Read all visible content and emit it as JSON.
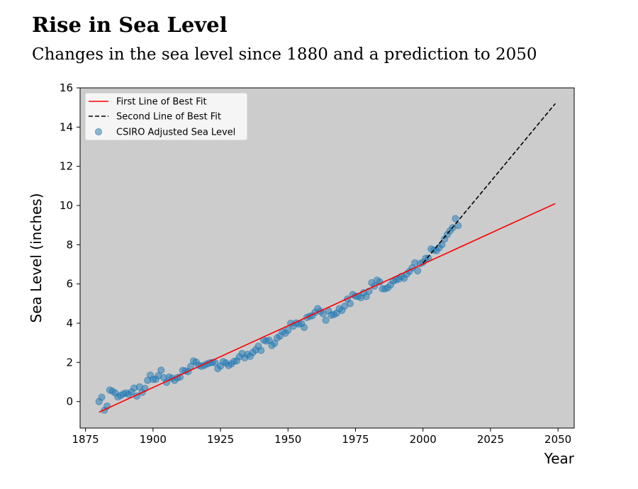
{
  "header": {
    "title": "Rise in Sea Level",
    "subtitle": "Changes in the sea level since 1880 and a prediction to 2050"
  },
  "chart_data": {
    "type": "scatter",
    "xlabel": "Year",
    "ylabel": "Sea Level (inches)",
    "xlim": [
      1873,
      2056
    ],
    "ylim": [
      -1.35,
      16
    ],
    "xticks": [
      1875,
      1900,
      1925,
      1950,
      1975,
      2000,
      2025,
      2050
    ],
    "yticks": [
      0,
      2,
      4,
      6,
      8,
      10,
      12,
      14,
      16
    ],
    "background_color": "#cccccc",
    "grid": false,
    "legend_position": "top-left",
    "legend": [
      {
        "label": "First Line of Best Fit",
        "style": "solid",
        "color": "#ff0000"
      },
      {
        "label": "Second Line of Best Fit",
        "style": "dashed",
        "color": "#000000"
      },
      {
        "label": "CSIRO Adjusted Sea Level",
        "style": "marker",
        "color": "#1f77b4"
      }
    ],
    "series": [
      {
        "name": "CSIRO Adjusted Sea Level",
        "type": "scatter",
        "color": "#1f77b4",
        "x": [
          1880,
          1881,
          1882,
          1883,
          1884,
          1885,
          1886,
          1887,
          1888,
          1889,
          1890,
          1891,
          1892,
          1893,
          1894,
          1895,
          1896,
          1897,
          1898,
          1899,
          1900,
          1901,
          1902,
          1903,
          1904,
          1905,
          1906,
          1907,
          1908,
          1909,
          1910,
          1911,
          1912,
          1913,
          1914,
          1915,
          1916,
          1917,
          1918,
          1919,
          1920,
          1921,
          1922,
          1923,
          1924,
          1925,
          1926,
          1927,
          1928,
          1929,
          1930,
          1931,
          1932,
          1933,
          1934,
          1935,
          1936,
          1937,
          1938,
          1939,
          1940,
          1941,
          1942,
          1943,
          1944,
          1945,
          1946,
          1947,
          1948,
          1949,
          1950,
          1951,
          1952,
          1953,
          1954,
          1955,
          1956,
          1957,
          1958,
          1959,
          1960,
          1961,
          1962,
          1963,
          1964,
          1965,
          1966,
          1967,
          1968,
          1969,
          1970,
          1971,
          1972,
          1973,
          1974,
          1975,
          1976,
          1977,
          1978,
          1979,
          1980,
          1981,
          1982,
          1983,
          1984,
          1985,
          1986,
          1987,
          1988,
          1989,
          1990,
          1991,
          1992,
          1993,
          1994,
          1995,
          1996,
          1997,
          1998,
          1999,
          2000,
          2001,
          2002,
          2003,
          2004,
          2005,
          2006,
          2007,
          2008,
          2009,
          2010,
          2011,
          2012,
          2013
        ],
        "y": [
          0.0,
          0.22,
          -0.44,
          -0.23,
          0.59,
          0.53,
          0.44,
          0.24,
          0.31,
          0.39,
          0.44,
          0.37,
          0.49,
          0.69,
          0.28,
          0.75,
          0.47,
          0.67,
          1.08,
          1.35,
          1.13,
          1.14,
          1.32,
          1.6,
          1.22,
          0.98,
          1.25,
          1.19,
          1.08,
          1.22,
          1.25,
          1.59,
          1.57,
          1.53,
          1.8,
          2.07,
          2.01,
          1.85,
          1.8,
          1.85,
          1.92,
          1.97,
          2.0,
          1.98,
          1.68,
          1.81,
          2.04,
          1.97,
          1.84,
          1.92,
          2.05,
          2.08,
          2.29,
          2.45,
          2.23,
          2.41,
          2.31,
          2.51,
          2.63,
          2.82,
          2.61,
          3.13,
          3.09,
          3.13,
          2.86,
          2.97,
          3.25,
          3.34,
          3.57,
          3.49,
          3.64,
          3.99,
          3.85,
          4.01,
          3.96,
          3.98,
          3.78,
          4.29,
          4.35,
          4.38,
          4.55,
          4.74,
          4.6,
          4.48,
          4.15,
          4.63,
          4.41,
          4.44,
          4.51,
          4.74,
          4.65,
          4.87,
          5.23,
          5.0,
          5.46,
          5.38,
          5.36,
          5.3,
          5.55,
          5.36,
          5.63,
          6.06,
          5.89,
          6.19,
          6.1,
          5.75,
          5.75,
          5.81,
          5.95,
          6.15,
          6.21,
          6.25,
          6.38,
          6.29,
          6.5,
          6.64,
          6.82,
          7.08,
          6.67,
          7.04,
          7.11,
          7.31,
          7.31,
          7.78,
          7.73,
          7.7,
          7.85,
          8.0,
          8.29,
          8.52,
          8.71,
          8.87,
          9.33,
          8.98
        ]
      },
      {
        "name": "First Line of Best Fit",
        "type": "line",
        "color": "#ff0000",
        "dash": "solid",
        "x": [
          1880,
          2049
        ],
        "y": [
          -0.54,
          10.1
        ]
      },
      {
        "name": "Second Line of Best Fit",
        "type": "line",
        "color": "#000000",
        "dash": "dashed",
        "x": [
          2000,
          2049
        ],
        "y": [
          7.06,
          15.2
        ]
      }
    ]
  }
}
